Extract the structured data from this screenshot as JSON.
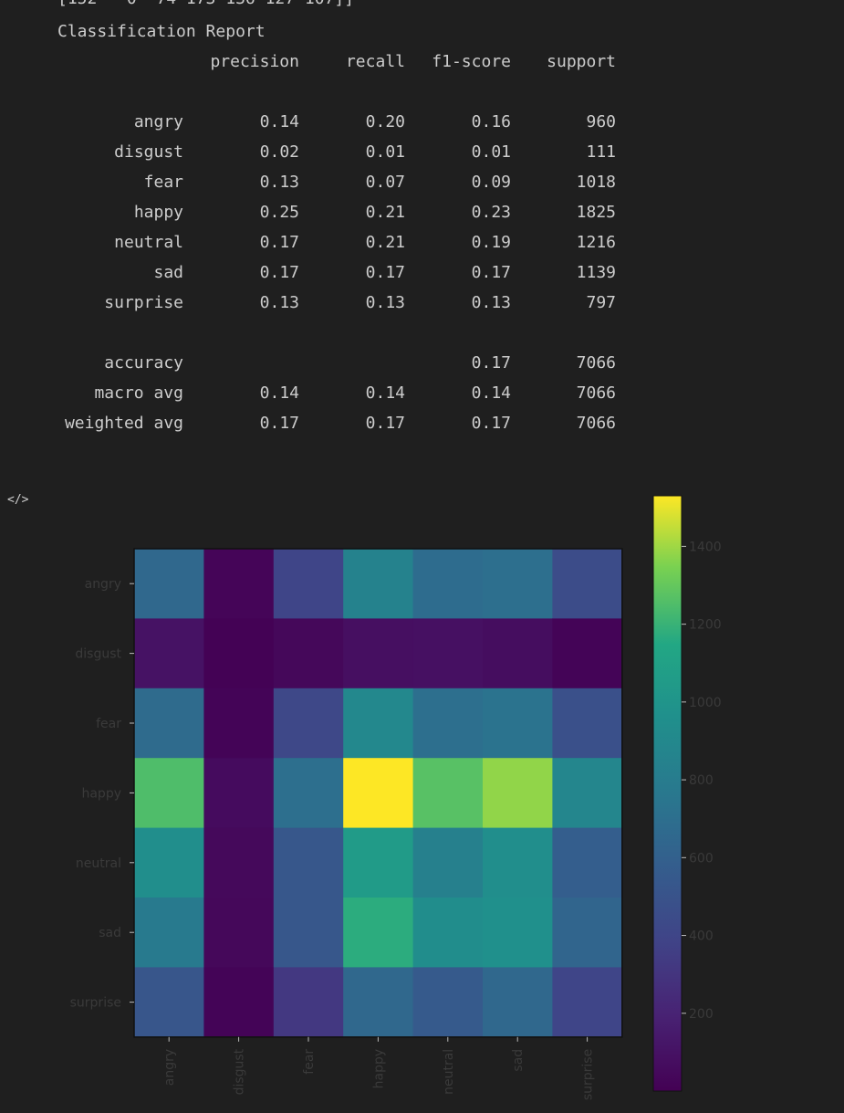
{
  "output": {
    "cut_line": "[152   0  74 173 136 127 107]]",
    "report_title": "Classification Report",
    "headers": [
      "precision",
      "recall",
      "f1-score",
      "support"
    ],
    "rows": [
      {
        "label": "angry",
        "precision": "0.14",
        "recall": "0.20",
        "f1": "0.16",
        "support": "960"
      },
      {
        "label": "disgust",
        "precision": "0.02",
        "recall": "0.01",
        "f1": "0.01",
        "support": "111"
      },
      {
        "label": "fear",
        "precision": "0.13",
        "recall": "0.07",
        "f1": "0.09",
        "support": "1018"
      },
      {
        "label": "happy",
        "precision": "0.25",
        "recall": "0.21",
        "f1": "0.23",
        "support": "1825"
      },
      {
        "label": "neutral",
        "precision": "0.17",
        "recall": "0.21",
        "f1": "0.19",
        "support": "1216"
      },
      {
        "label": "sad",
        "precision": "0.17",
        "recall": "0.17",
        "f1": "0.17",
        "support": "1139"
      },
      {
        "label": "surprise",
        "precision": "0.13",
        "recall": "0.13",
        "f1": "0.13",
        "support": "797"
      }
    ],
    "summary": [
      {
        "label": "accuracy",
        "precision": "",
        "recall": "",
        "f1": "0.17",
        "support": "7066"
      },
      {
        "label": "macro avg",
        "precision": "0.14",
        "recall": "0.14",
        "f1": "0.14",
        "support": "7066"
      },
      {
        "label": "weighted avg",
        "precision": "0.17",
        "recall": "0.17",
        "f1": "0.17",
        "support": "7066"
      }
    ]
  },
  "toolbar": {
    "code_icon_glyph": "</>"
  },
  "chart_data": {
    "type": "heatmap",
    "title": "",
    "xlabel": "",
    "ylabel": "",
    "x_categories": [
      "angry",
      "disgust",
      "fear",
      "happy",
      "neutral",
      "sad",
      "surprise"
    ],
    "y_categories": [
      "angry",
      "disgust",
      "fear",
      "happy",
      "neutral",
      "sad",
      "surprise"
    ],
    "values": [
      [
        650,
        25,
        400,
        850,
        680,
        700,
        450
      ],
      [
        100,
        5,
        40,
        80,
        90,
        70,
        20
      ],
      [
        670,
        20,
        420,
        900,
        700,
        730,
        480
      ],
      [
        1250,
        60,
        700,
        1530,
        1270,
        1380,
        880
      ],
      [
        950,
        45,
        530,
        1050,
        830,
        950,
        580
      ],
      [
        780,
        40,
        530,
        1170,
        940,
        960,
        630
      ],
      [
        520,
        20,
        320,
        650,
        550,
        650,
        400
      ]
    ],
    "colormap": "viridis",
    "colorbar": {
      "min": 0,
      "max": 1530,
      "ticks": [
        200,
        400,
        600,
        800,
        1000,
        1200,
        1400
      ]
    }
  }
}
